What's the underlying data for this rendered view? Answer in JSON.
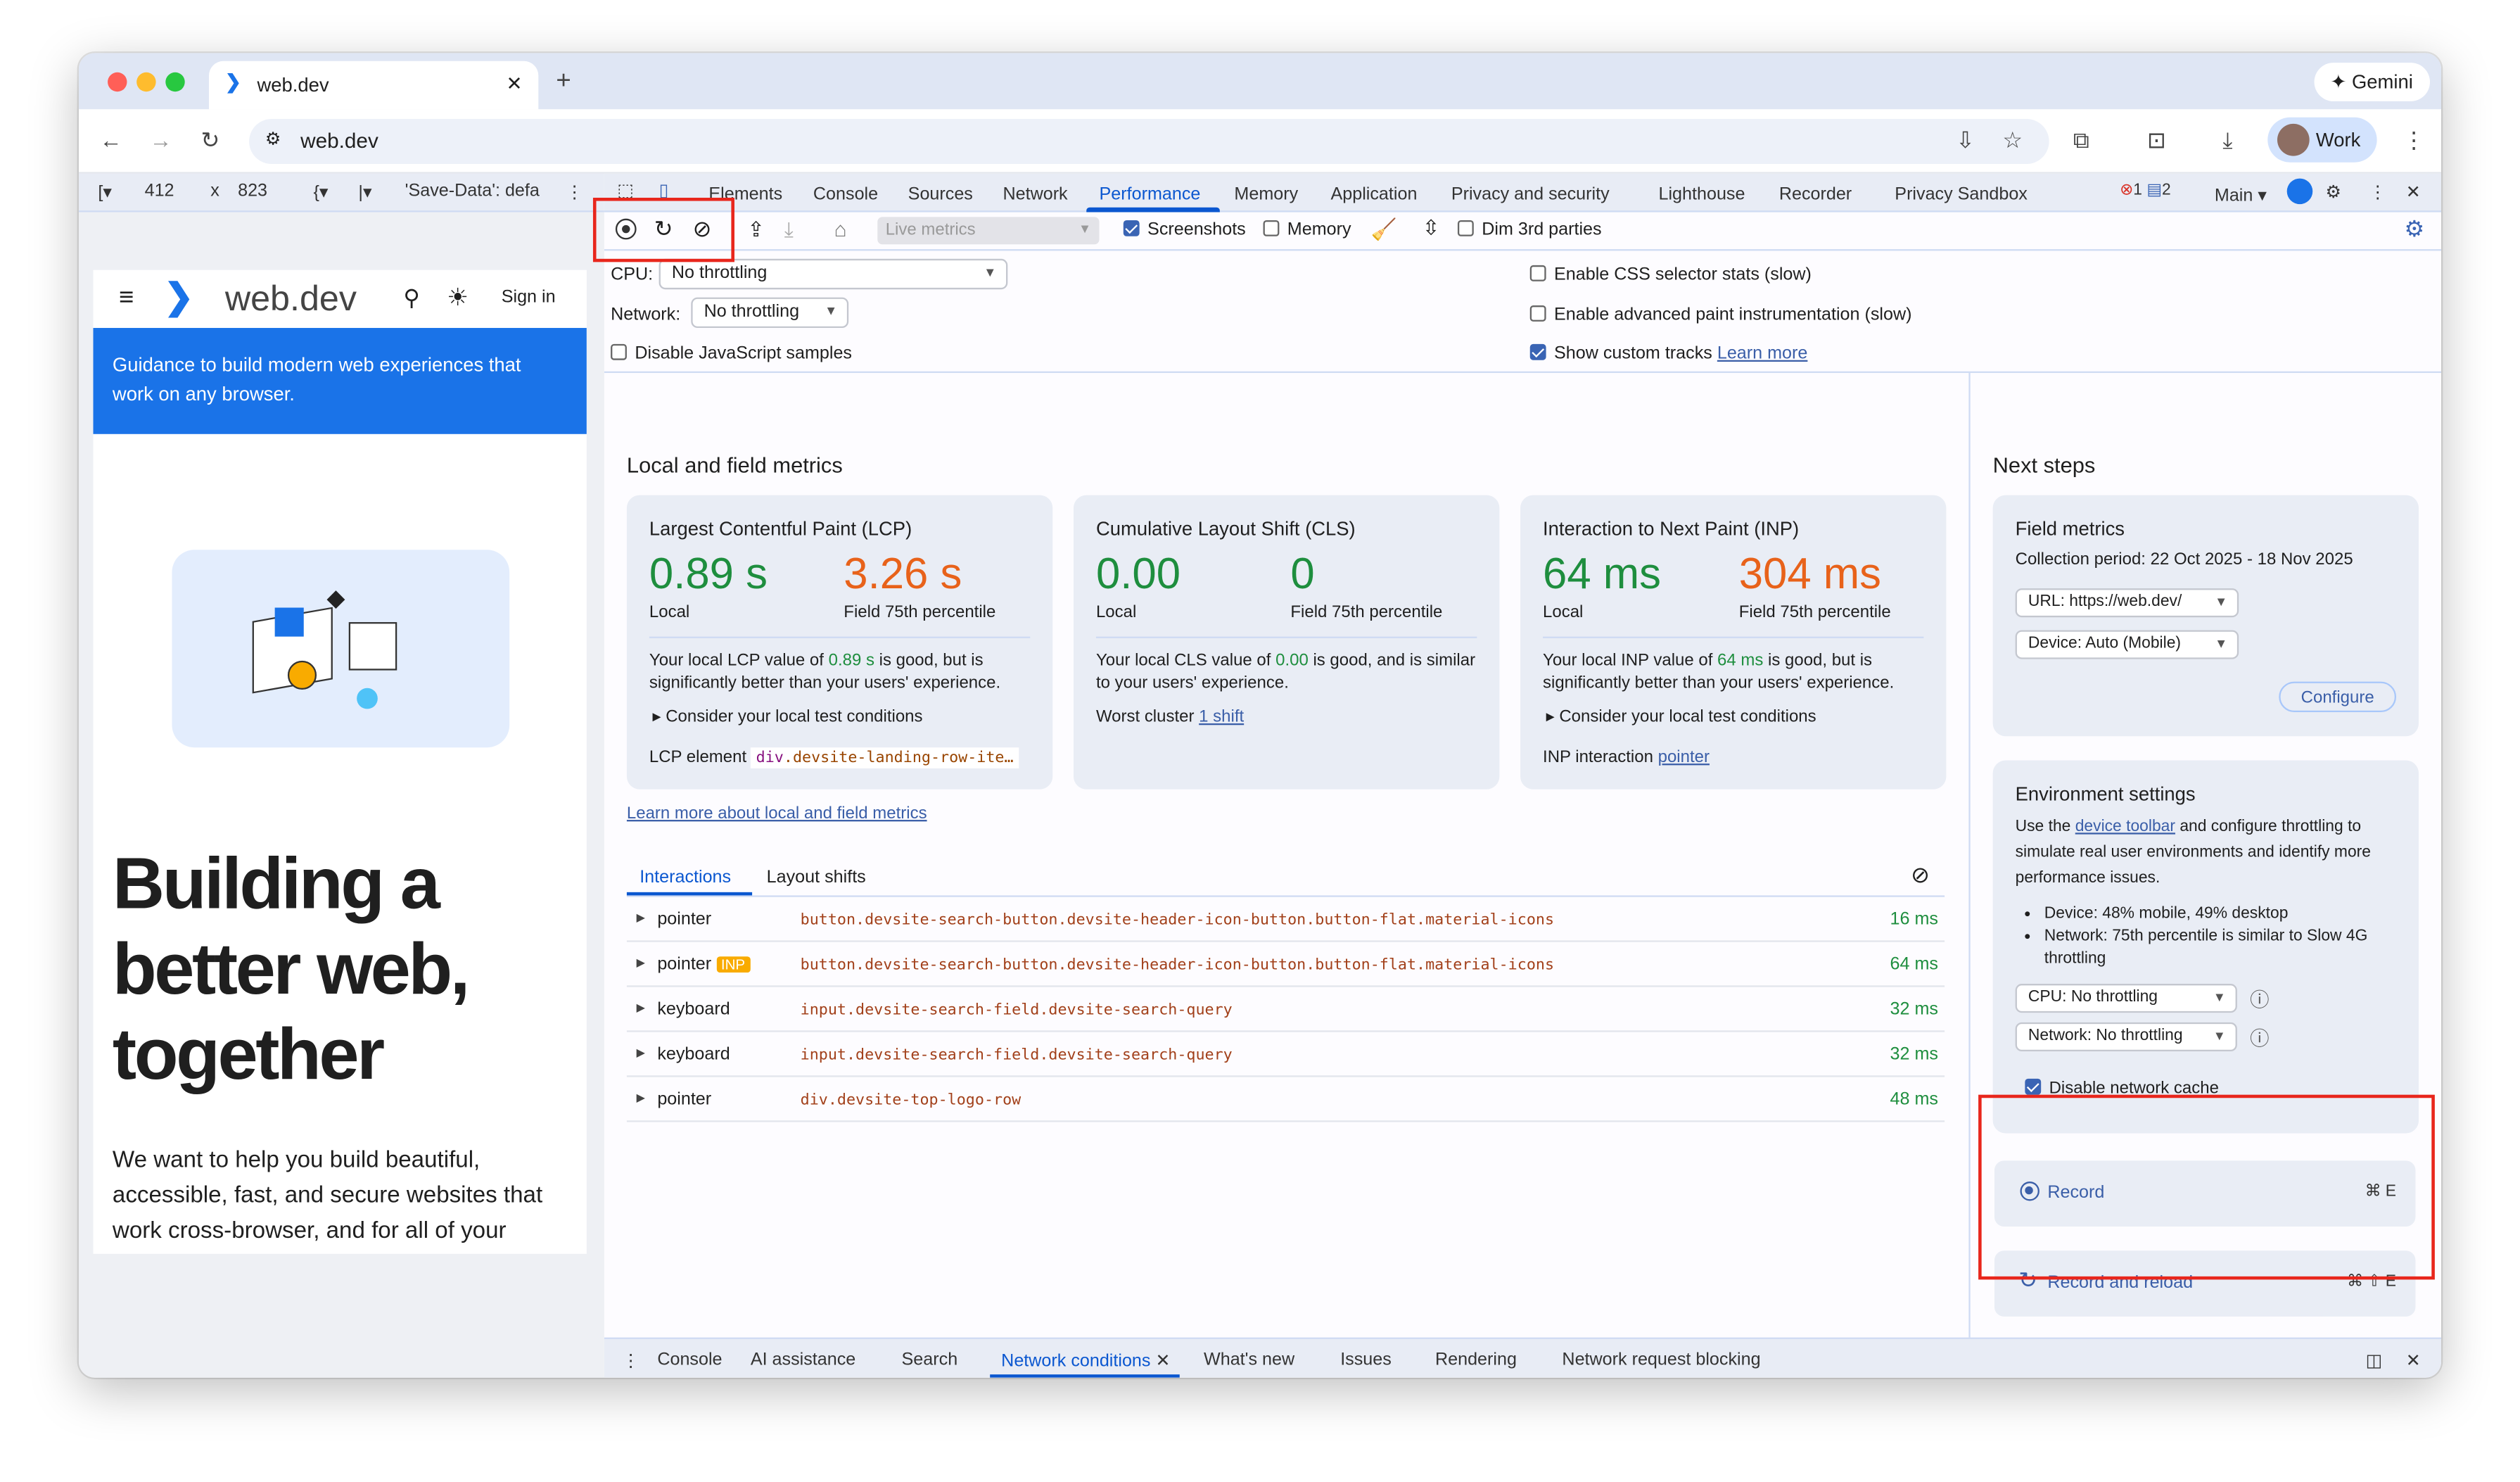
{
  "browser": {
    "tab_title": "web.dev",
    "new_tab": "+",
    "gemini": "Gemini",
    "url": "web.dev",
    "profile": "Work"
  },
  "device_toolbar": {
    "width": "412",
    "x": "x",
    "height": "823",
    "save_data": "'Save-Data': defa"
  },
  "devtools": {
    "tabs": [
      "Elements",
      "Console",
      "Sources",
      "Network",
      "Performance",
      "Memory",
      "Application",
      "Privacy and security",
      "Lighthouse",
      "Recorder",
      "Privacy Sandbox"
    ],
    "selected_tab": "Performance",
    "errors": "1",
    "messages": "2",
    "context": "Main",
    "toolbar": {
      "live_metrics": "Live metrics",
      "screenshots": "Screenshots",
      "memory": "Memory",
      "dim_3rd": "Dim 3rd parties"
    },
    "settings": {
      "cpu_label": "CPU:",
      "cpu_value": "No throttling",
      "network_label": "Network:",
      "network_value": "No throttling",
      "disable_js": "Disable JavaScript samples",
      "css_stats": "Enable CSS selector stats (slow)",
      "paint": "Enable advanced paint instrumentation (slow)",
      "custom_tracks": "Show custom tracks",
      "learn_more": "Learn more"
    }
  },
  "metrics": {
    "title": "Local and field metrics",
    "cards": [
      {
        "title": "Largest Contentful Paint (LCP)",
        "local": "0.89 s",
        "field": "3.26 s",
        "local_label": "Local",
        "field_label": "Field 75th percentile",
        "desc_a": "Your local LCP value of ",
        "desc_val": "0.89 s",
        "desc_b": " is good, but is significantly better than your users' experience.",
        "extra": "Consider your local test conditions",
        "foot_label": "LCP element",
        "foot_tag": "div",
        "foot_value": ".devsite-landing-row-ite…"
      },
      {
        "title": "Cumulative Layout Shift (CLS)",
        "local": "0.00",
        "field": "0",
        "local_label": "Local",
        "field_label": "Field 75th percentile",
        "desc_a": "Your local CLS value of ",
        "desc_val": "0.00",
        "desc_b": " is good, and is similar to your users' experience.",
        "foot_label": "Worst cluster",
        "foot_link": "1 shift"
      },
      {
        "title": "Interaction to Next Paint (INP)",
        "local": "64 ms",
        "field": "304 ms",
        "local_label": "Local",
        "field_label": "Field 75th percentile",
        "desc_a": "Your local INP value of ",
        "desc_val": "64 ms",
        "desc_b": " is good, but is significantly better than your users' experience.",
        "extra": "Consider your local test conditions",
        "foot_label": "INP interaction",
        "foot_link": "pointer"
      }
    ],
    "learn_more": "Learn more about local and field metrics",
    "tabs": [
      "Interactions",
      "Layout shifts"
    ],
    "interactions": [
      {
        "type": "pointer",
        "badge": "",
        "selector": "button.devsite-search-button.devsite-header-icon-button.button-flat.material-icons",
        "time": "16 ms"
      },
      {
        "type": "pointer",
        "badge": "INP",
        "selector": "button.devsite-search-button.devsite-header-icon-button.button-flat.material-icons",
        "time": "64 ms"
      },
      {
        "type": "keyboard",
        "badge": "",
        "selector": "input.devsite-search-field.devsite-search-query",
        "time": "32 ms"
      },
      {
        "type": "keyboard",
        "badge": "",
        "selector": "input.devsite-search-field.devsite-search-query",
        "time": "32 ms"
      },
      {
        "type": "pointer",
        "badge": "",
        "selector": "div.devsite-top-logo-row",
        "time": "48 ms"
      }
    ]
  },
  "next_steps": {
    "title": "Next steps",
    "field": {
      "title": "Field metrics",
      "period": "Collection period: 22 Oct 2025 - 18 Nov 2025",
      "url": "URL: https://web.dev/",
      "device": "Device: Auto (Mobile)",
      "configure": "Configure"
    },
    "env": {
      "title": "Environment settings",
      "text_a": "Use the ",
      "link": "device toolbar",
      "text_b": " and configure throttling to simulate real user environments and identify more performance issues.",
      "bullet1": "Device: 48% mobile, 49% desktop",
      "bullet2": "Network: 75th percentile is similar to Slow 4G throttling",
      "cpu": "CPU: No throttling",
      "network": "Network: No throttling",
      "cache": "Disable network cache"
    },
    "record": "Record",
    "record_shortcut": "⌘ E",
    "reload": "Record and reload",
    "reload_shortcut": "⌘ ⇧ E"
  },
  "drawer": {
    "tabs": [
      "Console",
      "AI assistance",
      "Search",
      "Network conditions",
      "What's new",
      "Issues",
      "Rendering",
      "Network request blocking"
    ],
    "selected": "Network conditions"
  },
  "page": {
    "logo": "web.dev",
    "sign_in": "Sign in",
    "banner": "Guidance to build modern web experiences that work on any browser.",
    "heading": "Building a better web, together",
    "body": "We want to help you build beautiful, accessible, fast, and secure websites that work cross-browser, and for all of your"
  },
  "colors": {
    "good": "#1e8e3e",
    "poor": "#e8621a",
    "accent": "#0b57d0",
    "banner": "#1a73e8",
    "highlight": "#e8261c"
  }
}
